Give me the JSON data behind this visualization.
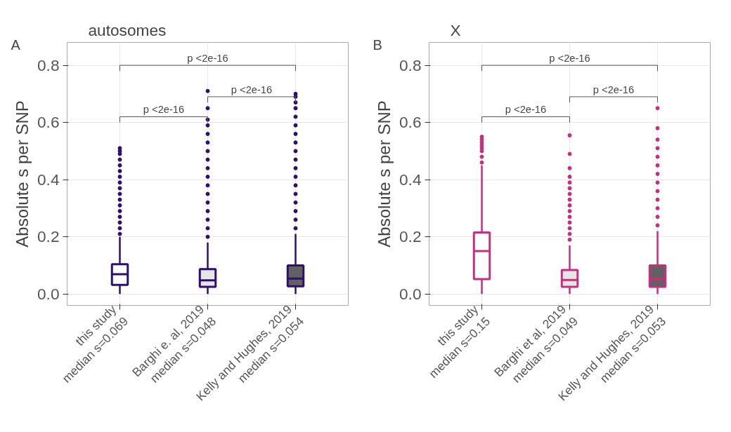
{
  "chart_data": [
    {
      "type": "box",
      "title": "autosomes",
      "ylabel": "Absolute s per SNP",
      "annotations": [
        "A",
        "p <2e-16",
        "p <2e-16",
        "p <2e-16"
      ],
      "categories": [
        "this study\nmedian s=0.069",
        "Barghi e. al, 2019\nmedian s=0.048",
        "Kelly and Hughes, 2019\nmedian s=0.054"
      ],
      "colors": [
        "#ffffff",
        "#e6e6e6",
        "#616161"
      ],
      "series": [
        {
          "color": "#2e0f6b",
          "boxes": [
            {
              "low": 0.0,
              "q1": 0.032,
              "median": 0.069,
              "q3": 0.104,
              "high": 0.2,
              "outliers": [
                0.21,
                0.23,
                0.25,
                0.27,
                0.29,
                0.31,
                0.33,
                0.35,
                0.37,
                0.39,
                0.41,
                0.43,
                0.45,
                0.47,
                0.49,
                0.5,
                0.51
              ]
            },
            {
              "low": 0.0,
              "q1": 0.025,
              "median": 0.048,
              "q3": 0.087,
              "high": 0.18,
              "outliers": [
                0.2,
                0.23,
                0.26,
                0.29,
                0.32,
                0.35,
                0.38,
                0.41,
                0.44,
                0.47,
                0.5,
                0.53,
                0.56,
                0.59,
                0.61,
                0.65,
                0.71
              ]
            },
            {
              "low": 0.0,
              "q1": 0.027,
              "median": 0.054,
              "q3": 0.1,
              "high": 0.21,
              "outliers": [
                0.23,
                0.26,
                0.29,
                0.32,
                0.35,
                0.38,
                0.41,
                0.44,
                0.47,
                0.5,
                0.53,
                0.56,
                0.59,
                0.62,
                0.65,
                0.67,
                0.69,
                0.7
              ]
            }
          ]
        }
      ],
      "ylim": [
        -0.04,
        0.88
      ],
      "yticks": [
        {
          "value": 0,
          "label": "0.0"
        },
        0.2,
        0.4,
        0.6,
        0.8
      ],
      "grid": true
    },
    {
      "type": "box",
      "title": "X",
      "ylabel": "Absolute s per SNP",
      "annotations": [
        "B",
        "p <2e-16",
        "p <2e-16",
        "p <2e-16"
      ],
      "categories": [
        "this study\nmedian s=0.15",
        "Barghi et al, 2019\nmedian s=0.049",
        "Kelly and Hughes, 2019\nmedian s=0.053"
      ],
      "colors": [
        "#ffffff",
        "#e6e6e6",
        "#616161"
      ],
      "series": [
        {
          "color": "#c2307f",
          "boxes": [
            {
              "low": 0.0,
              "q1": 0.052,
              "median": 0.15,
              "q3": 0.215,
              "high": 0.45,
              "outliers": [
                0.46,
                0.48,
                0.5,
                0.51,
                0.52,
                0.53,
                0.54,
                0.55
              ]
            },
            {
              "low": 0.0,
              "q1": 0.025,
              "median": 0.049,
              "q3": 0.084,
              "high": 0.17,
              "outliers": [
                0.19,
                0.21,
                0.23,
                0.25,
                0.27,
                0.29,
                0.31,
                0.33,
                0.35,
                0.37,
                0.39,
                0.41,
                0.44,
                0.49,
                0.555
              ]
            },
            {
              "low": 0.0,
              "q1": 0.025,
              "median": 0.053,
              "q3": 0.1,
              "high": 0.22,
              "outliers": [
                0.24,
                0.27,
                0.3,
                0.33,
                0.36,
                0.39,
                0.42,
                0.45,
                0.48,
                0.51,
                0.54,
                0.58,
                0.65
              ]
            }
          ]
        }
      ],
      "ylim": [
        -0.04,
        0.88
      ],
      "yticks": [
        {
          "value": 0,
          "label": "0.0"
        },
        0.2,
        0.4,
        0.6,
        0.8
      ],
      "grid": true
    }
  ]
}
